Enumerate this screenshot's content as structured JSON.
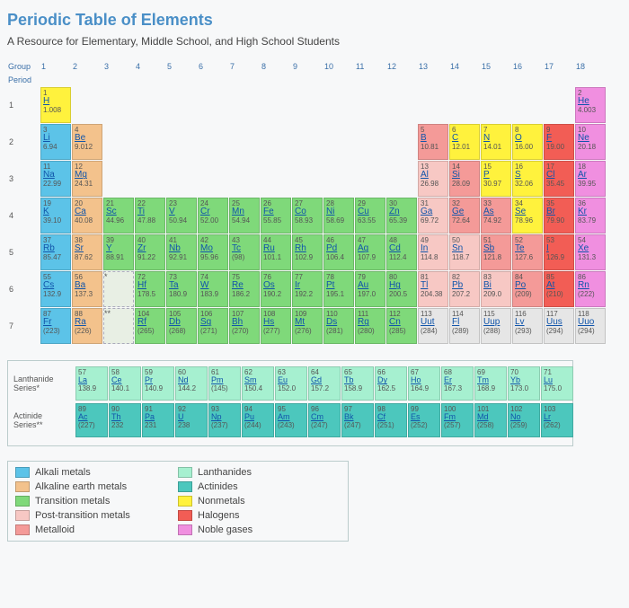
{
  "title": "Periodic Table of Elements",
  "subtitle": "A Resource for Elementary, Middle School, and High School Students",
  "header": {
    "group_label": "Group",
    "period_label": "Period",
    "groups": [
      "1",
      "2",
      "3",
      "4",
      "5",
      "6",
      "7",
      "8",
      "9",
      "10",
      "11",
      "12",
      "13",
      "14",
      "15",
      "16",
      "17",
      "18"
    ],
    "periods": [
      "1",
      "2",
      "3",
      "4",
      "5",
      "6",
      "7"
    ]
  },
  "colors": {
    "alkali": "#5cc3e8",
    "alkaline": "#f3c28c",
    "transition": "#7fd97a",
    "post": "#f7c8c4",
    "metalloid": "#f49a98",
    "lanth": "#a6f0d0",
    "act": "#4cc7bd",
    "nonmetal": "#fff23d",
    "halogen": "#f25d55",
    "noble": "#f08fe0",
    "unknown": "#e6e6e6"
  },
  "legend": [
    {
      "label": "Alkali metals",
      "color": "alkali"
    },
    {
      "label": "Lanthanides",
      "color": "lanth"
    },
    {
      "label": "Alkaline earth metals",
      "color": "alkaline"
    },
    {
      "label": "Actinides",
      "color": "act"
    },
    {
      "label": "Transition metals",
      "color": "transition"
    },
    {
      "label": "Nonmetals",
      "color": "nonmetal"
    },
    {
      "label": "Post-transition metals",
      "color": "post"
    },
    {
      "label": "Halogens",
      "color": "halogen"
    },
    {
      "label": "Metalloid",
      "color": "metalloid"
    },
    {
      "label": "Noble gases",
      "color": "noble"
    }
  ],
  "series": {
    "lanth_label": "Lanthanide Series*",
    "act_label": "Actinide Series**",
    "lanth": [
      {
        "n": 57,
        "s": "La",
        "m": "138.9"
      },
      {
        "n": 58,
        "s": "Ce",
        "m": "140.1"
      },
      {
        "n": 59,
        "s": "Pr",
        "m": "140.9"
      },
      {
        "n": 60,
        "s": "Nd",
        "m": "144.2"
      },
      {
        "n": 61,
        "s": "Pm",
        "m": "(145)"
      },
      {
        "n": 62,
        "s": "Sm",
        "m": "150.4"
      },
      {
        "n": 63,
        "s": "Eu",
        "m": "152.0"
      },
      {
        "n": 64,
        "s": "Gd",
        "m": "157.2"
      },
      {
        "n": 65,
        "s": "Tb",
        "m": "158.9"
      },
      {
        "n": 66,
        "s": "Dy",
        "m": "162.5"
      },
      {
        "n": 67,
        "s": "Ho",
        "m": "164.9"
      },
      {
        "n": 68,
        "s": "Er",
        "m": "167.3"
      },
      {
        "n": 69,
        "s": "Tm",
        "m": "168.9"
      },
      {
        "n": 70,
        "s": "Yb",
        "m": "173.0"
      },
      {
        "n": 71,
        "s": "Lu",
        "m": "175.0"
      }
    ],
    "act": [
      {
        "n": 89,
        "s": "Ac",
        "m": "(227)"
      },
      {
        "n": 90,
        "s": "Th",
        "m": "232"
      },
      {
        "n": 91,
        "s": "Pa",
        "m": "231"
      },
      {
        "n": 92,
        "s": "U",
        "m": "238"
      },
      {
        "n": 93,
        "s": "Np",
        "m": "(237)"
      },
      {
        "n": 94,
        "s": "Pu",
        "m": "(244)"
      },
      {
        "n": 95,
        "s": "Am",
        "m": "(243)"
      },
      {
        "n": 96,
        "s": "Cm",
        "m": "(247)"
      },
      {
        "n": 97,
        "s": "Bk",
        "m": "(247)"
      },
      {
        "n": 98,
        "s": "Cf",
        "m": "(251)"
      },
      {
        "n": 99,
        "s": "Es",
        "m": "(252)"
      },
      {
        "n": 100,
        "s": "Fm",
        "m": "(257)"
      },
      {
        "n": 101,
        "s": "Md",
        "m": "(258)"
      },
      {
        "n": 102,
        "s": "No",
        "m": "(259)"
      },
      {
        "n": 103,
        "s": "Lr",
        "m": "(262)"
      }
    ]
  },
  "elements": [
    {
      "n": 1,
      "s": "H",
      "m": "1.008",
      "r": 1,
      "g": 1,
      "c": "nonmetal"
    },
    {
      "n": 2,
      "s": "He",
      "m": "4.003",
      "r": 1,
      "g": 18,
      "c": "noble"
    },
    {
      "n": 3,
      "s": "Li",
      "m": "6.94",
      "r": 2,
      "g": 1,
      "c": "alkali"
    },
    {
      "n": 4,
      "s": "Be",
      "m": "9.012",
      "r": 2,
      "g": 2,
      "c": "alkaline"
    },
    {
      "n": 5,
      "s": "B",
      "m": "10.81",
      "r": 2,
      "g": 13,
      "c": "metalloid"
    },
    {
      "n": 6,
      "s": "C",
      "m": "12.01",
      "r": 2,
      "g": 14,
      "c": "nonmetal"
    },
    {
      "n": 7,
      "s": "N",
      "m": "14.01",
      "r": 2,
      "g": 15,
      "c": "nonmetal"
    },
    {
      "n": 8,
      "s": "O",
      "m": "16.00",
      "r": 2,
      "g": 16,
      "c": "nonmetal"
    },
    {
      "n": 9,
      "s": "F",
      "m": "19.00",
      "r": 2,
      "g": 17,
      "c": "halogen"
    },
    {
      "n": 10,
      "s": "Ne",
      "m": "20.18",
      "r": 2,
      "g": 18,
      "c": "noble"
    },
    {
      "n": 11,
      "s": "Na",
      "m": "22.99",
      "r": 3,
      "g": 1,
      "c": "alkali"
    },
    {
      "n": 12,
      "s": "Mg",
      "m": "24.31",
      "r": 3,
      "g": 2,
      "c": "alkaline"
    },
    {
      "n": 13,
      "s": "Al",
      "m": "26.98",
      "r": 3,
      "g": 13,
      "c": "post"
    },
    {
      "n": 14,
      "s": "Si",
      "m": "28.09",
      "r": 3,
      "g": 14,
      "c": "metalloid"
    },
    {
      "n": 15,
      "s": "P",
      "m": "30.97",
      "r": 3,
      "g": 15,
      "c": "nonmetal"
    },
    {
      "n": 16,
      "s": "S",
      "m": "32.06",
      "r": 3,
      "g": 16,
      "c": "nonmetal"
    },
    {
      "n": 17,
      "s": "Cl",
      "m": "35.45",
      "r": 3,
      "g": 17,
      "c": "halogen"
    },
    {
      "n": 18,
      "s": "Ar",
      "m": "39.95",
      "r": 3,
      "g": 18,
      "c": "noble"
    },
    {
      "n": 19,
      "s": "K",
      "m": "39.10",
      "r": 4,
      "g": 1,
      "c": "alkali"
    },
    {
      "n": 20,
      "s": "Ca",
      "m": "40.08",
      "r": 4,
      "g": 2,
      "c": "alkaline"
    },
    {
      "n": 21,
      "s": "Sc",
      "m": "44.96",
      "r": 4,
      "g": 3,
      "c": "transition"
    },
    {
      "n": 22,
      "s": "Ti",
      "m": "47.88",
      "r": 4,
      "g": 4,
      "c": "transition"
    },
    {
      "n": 23,
      "s": "V",
      "m": "50.94",
      "r": 4,
      "g": 5,
      "c": "transition"
    },
    {
      "n": 24,
      "s": "Cr",
      "m": "52.00",
      "r": 4,
      "g": 6,
      "c": "transition"
    },
    {
      "n": 25,
      "s": "Mn",
      "m": "54.94",
      "r": 4,
      "g": 7,
      "c": "transition"
    },
    {
      "n": 26,
      "s": "Fe",
      "m": "55.85",
      "r": 4,
      "g": 8,
      "c": "transition"
    },
    {
      "n": 27,
      "s": "Co",
      "m": "58.93",
      "r": 4,
      "g": 9,
      "c": "transition"
    },
    {
      "n": 28,
      "s": "Ni",
      "m": "58.69",
      "r": 4,
      "g": 10,
      "c": "transition"
    },
    {
      "n": 29,
      "s": "Cu",
      "m": "63.55",
      "r": 4,
      "g": 11,
      "c": "transition"
    },
    {
      "n": 30,
      "s": "Zn",
      "m": "65.39",
      "r": 4,
      "g": 12,
      "c": "transition"
    },
    {
      "n": 31,
      "s": "Ga",
      "m": "69.72",
      "r": 4,
      "g": 13,
      "c": "post"
    },
    {
      "n": 32,
      "s": "Ge",
      "m": "72.64",
      "r": 4,
      "g": 14,
      "c": "metalloid"
    },
    {
      "n": 33,
      "s": "As",
      "m": "74.92",
      "r": 4,
      "g": 15,
      "c": "metalloid"
    },
    {
      "n": 34,
      "s": "Se",
      "m": "78.96",
      "r": 4,
      "g": 16,
      "c": "nonmetal"
    },
    {
      "n": 35,
      "s": "Br",
      "m": "79.90",
      "r": 4,
      "g": 17,
      "c": "halogen"
    },
    {
      "n": 36,
      "s": "Kr",
      "m": "83.79",
      "r": 4,
      "g": 18,
      "c": "noble"
    },
    {
      "n": 37,
      "s": "Rb",
      "m": "85.47",
      "r": 5,
      "g": 1,
      "c": "alkali"
    },
    {
      "n": 38,
      "s": "Sr",
      "m": "87.62",
      "r": 5,
      "g": 2,
      "c": "alkaline"
    },
    {
      "n": 39,
      "s": "Y",
      "m": "88.91",
      "r": 5,
      "g": 3,
      "c": "transition"
    },
    {
      "n": 40,
      "s": "Zr",
      "m": "91.22",
      "r": 5,
      "g": 4,
      "c": "transition"
    },
    {
      "n": 41,
      "s": "Nb",
      "m": "92.91",
      "r": 5,
      "g": 5,
      "c": "transition"
    },
    {
      "n": 42,
      "s": "Mo",
      "m": "95.96",
      "r": 5,
      "g": 6,
      "c": "transition"
    },
    {
      "n": 43,
      "s": "Tc",
      "m": "(98)",
      "r": 5,
      "g": 7,
      "c": "transition"
    },
    {
      "n": 44,
      "s": "Ru",
      "m": "101.1",
      "r": 5,
      "g": 8,
      "c": "transition"
    },
    {
      "n": 45,
      "s": "Rh",
      "m": "102.9",
      "r": 5,
      "g": 9,
      "c": "transition"
    },
    {
      "n": 46,
      "s": "Pd",
      "m": "106.4",
      "r": 5,
      "g": 10,
      "c": "transition"
    },
    {
      "n": 47,
      "s": "Ag",
      "m": "107.9",
      "r": 5,
      "g": 11,
      "c": "transition"
    },
    {
      "n": 48,
      "s": "Cd",
      "m": "112.4",
      "r": 5,
      "g": 12,
      "c": "transition"
    },
    {
      "n": 49,
      "s": "In",
      "m": "114.8",
      "r": 5,
      "g": 13,
      "c": "post"
    },
    {
      "n": 50,
      "s": "Sn",
      "m": "118.7",
      "r": 5,
      "g": 14,
      "c": "post"
    },
    {
      "n": 51,
      "s": "Sb",
      "m": "121.8",
      "r": 5,
      "g": 15,
      "c": "metalloid"
    },
    {
      "n": 52,
      "s": "Te",
      "m": "127.6",
      "r": 5,
      "g": 16,
      "c": "metalloid"
    },
    {
      "n": 53,
      "s": "I",
      "m": "126.9",
      "r": 5,
      "g": 17,
      "c": "halogen"
    },
    {
      "n": 54,
      "s": "Xe",
      "m": "131.3",
      "r": 5,
      "g": 18,
      "c": "noble"
    },
    {
      "n": 55,
      "s": "Cs",
      "m": "132.9",
      "r": 6,
      "g": 1,
      "c": "alkali"
    },
    {
      "n": 56,
      "s": "Ba",
      "m": "137.3",
      "r": 6,
      "g": 2,
      "c": "alkaline"
    },
    {
      "n": "*",
      "s": "",
      "m": "",
      "r": 6,
      "g": 3,
      "c": "placeholder"
    },
    {
      "n": 72,
      "s": "Hf",
      "m": "178.5",
      "r": 6,
      "g": 4,
      "c": "transition"
    },
    {
      "n": 73,
      "s": "Ta",
      "m": "180.9",
      "r": 6,
      "g": 5,
      "c": "transition"
    },
    {
      "n": 74,
      "s": "W",
      "m": "183.9",
      "r": 6,
      "g": 6,
      "c": "transition"
    },
    {
      "n": 75,
      "s": "Re",
      "m": "186.2",
      "r": 6,
      "g": 7,
      "c": "transition"
    },
    {
      "n": 76,
      "s": "Os",
      "m": "190.2",
      "r": 6,
      "g": 8,
      "c": "transition"
    },
    {
      "n": 77,
      "s": "Ir",
      "m": "192.2",
      "r": 6,
      "g": 9,
      "c": "transition"
    },
    {
      "n": 78,
      "s": "Pt",
      "m": "195.1",
      "r": 6,
      "g": 10,
      "c": "transition"
    },
    {
      "n": 79,
      "s": "Au",
      "m": "197.0",
      "r": 6,
      "g": 11,
      "c": "transition"
    },
    {
      "n": 80,
      "s": "Hg",
      "m": "200.5",
      "r": 6,
      "g": 12,
      "c": "transition"
    },
    {
      "n": 81,
      "s": "Tl",
      "m": "204.38",
      "r": 6,
      "g": 13,
      "c": "post"
    },
    {
      "n": 82,
      "s": "Pb",
      "m": "207.2",
      "r": 6,
      "g": 14,
      "c": "post"
    },
    {
      "n": 83,
      "s": "Bi",
      "m": "209.0",
      "r": 6,
      "g": 15,
      "c": "post"
    },
    {
      "n": 84,
      "s": "Po",
      "m": "(209)",
      "r": 6,
      "g": 16,
      "c": "metalloid"
    },
    {
      "n": 85,
      "s": "At",
      "m": "(210)",
      "r": 6,
      "g": 17,
      "c": "halogen"
    },
    {
      "n": 86,
      "s": "Rn",
      "m": "(222)",
      "r": 6,
      "g": 18,
      "c": "noble"
    },
    {
      "n": 87,
      "s": "Fr",
      "m": "(223)",
      "r": 7,
      "g": 1,
      "c": "alkali"
    },
    {
      "n": 88,
      "s": "Ra",
      "m": "(226)",
      "r": 7,
      "g": 2,
      "c": "alkaline"
    },
    {
      "n": "**",
      "s": "",
      "m": "",
      "r": 7,
      "g": 3,
      "c": "placeholder"
    },
    {
      "n": 104,
      "s": "Rf",
      "m": "(265)",
      "r": 7,
      "g": 4,
      "c": "transition"
    },
    {
      "n": 105,
      "s": "Db",
      "m": "(268)",
      "r": 7,
      "g": 5,
      "c": "transition"
    },
    {
      "n": 106,
      "s": "Sg",
      "m": "(271)",
      "r": 7,
      "g": 6,
      "c": "transition"
    },
    {
      "n": 107,
      "s": "Bh",
      "m": "(270)",
      "r": 7,
      "g": 7,
      "c": "transition"
    },
    {
      "n": 108,
      "s": "Hs",
      "m": "(277)",
      "r": 7,
      "g": 8,
      "c": "transition"
    },
    {
      "n": 109,
      "s": "Mt",
      "m": "(276)",
      "r": 7,
      "g": 9,
      "c": "transition"
    },
    {
      "n": 110,
      "s": "Ds",
      "m": "(281)",
      "r": 7,
      "g": 10,
      "c": "transition"
    },
    {
      "n": 111,
      "s": "Rg",
      "m": "(280)",
      "r": 7,
      "g": 11,
      "c": "transition"
    },
    {
      "n": 112,
      "s": "Cn",
      "m": "(285)",
      "r": 7,
      "g": 12,
      "c": "transition"
    },
    {
      "n": 113,
      "s": "Uut",
      "m": "(284)",
      "r": 7,
      "g": 13,
      "c": "unknown"
    },
    {
      "n": 114,
      "s": "Fl",
      "m": "(289)",
      "r": 7,
      "g": 14,
      "c": "unknown"
    },
    {
      "n": 115,
      "s": "Uup",
      "m": "(288)",
      "r": 7,
      "g": 15,
      "c": "unknown"
    },
    {
      "n": 116,
      "s": "Lv",
      "m": "(293)",
      "r": 7,
      "g": 16,
      "c": "unknown"
    },
    {
      "n": 117,
      "s": "Uus",
      "m": "(294)",
      "r": 7,
      "g": 17,
      "c": "unknown"
    },
    {
      "n": 118,
      "s": "Uuo",
      "m": "(294)",
      "r": 7,
      "g": 18,
      "c": "unknown"
    }
  ]
}
